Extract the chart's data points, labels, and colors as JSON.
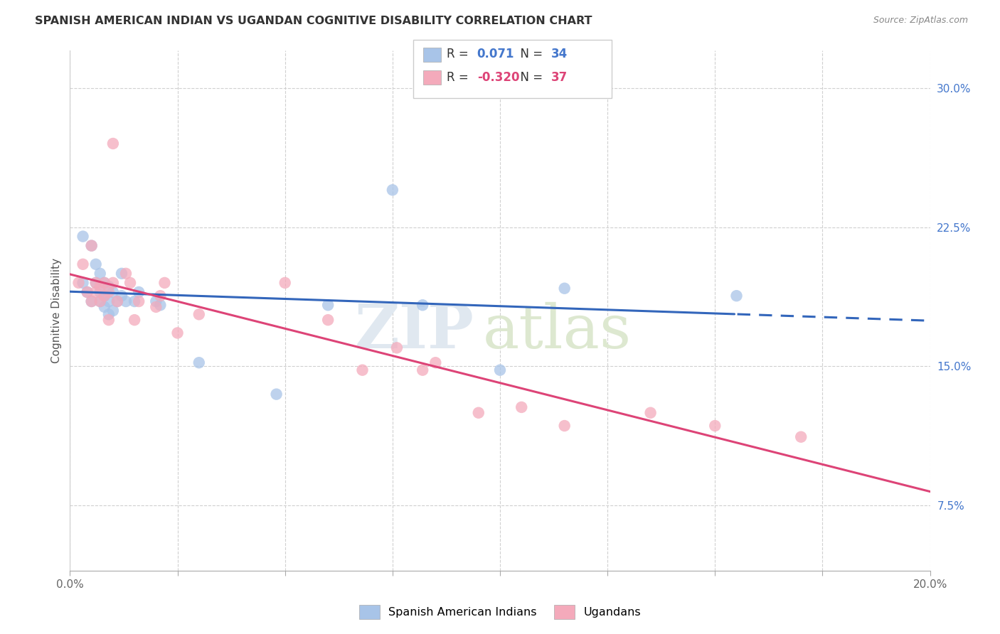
{
  "title": "SPANISH AMERICAN INDIAN VS UGANDAN COGNITIVE DISABILITY CORRELATION CHART",
  "source": "Source: ZipAtlas.com",
  "ylabel": "Cognitive Disability",
  "right_yticks": [
    "30.0%",
    "22.5%",
    "15.0%",
    "7.5%"
  ],
  "right_ytick_vals": [
    0.3,
    0.225,
    0.15,
    0.075
  ],
  "xlim": [
    0.0,
    0.2
  ],
  "ylim": [
    0.04,
    0.32
  ],
  "blue_R": "0.071",
  "blue_N": "34",
  "pink_R": "-0.320",
  "pink_N": "37",
  "blue_color": "#A8C4E8",
  "pink_color": "#F4AABB",
  "blue_line_color": "#3366BB",
  "pink_line_color": "#DD4477",
  "legend_label_blue": "Spanish American Indians",
  "legend_label_pink": "Ugandans",
  "watermark_zip": "ZIP",
  "watermark_atlas": "atlas",
  "blue_x": [
    0.003,
    0.003,
    0.004,
    0.005,
    0.005,
    0.006,
    0.006,
    0.007,
    0.007,
    0.007,
    0.008,
    0.008,
    0.008,
    0.009,
    0.009,
    0.009,
    0.01,
    0.01,
    0.011,
    0.012,
    0.012,
    0.013,
    0.015,
    0.016,
    0.02,
    0.021,
    0.03,
    0.048,
    0.06,
    0.075,
    0.082,
    0.1,
    0.115,
    0.155
  ],
  "blue_y": [
    0.195,
    0.22,
    0.19,
    0.185,
    0.215,
    0.195,
    0.205,
    0.185,
    0.19,
    0.2,
    0.182,
    0.188,
    0.195,
    0.178,
    0.185,
    0.193,
    0.18,
    0.19,
    0.185,
    0.188,
    0.2,
    0.185,
    0.185,
    0.19,
    0.185,
    0.183,
    0.152,
    0.135,
    0.183,
    0.245,
    0.183,
    0.148,
    0.192,
    0.188
  ],
  "pink_x": [
    0.002,
    0.003,
    0.004,
    0.005,
    0.005,
    0.006,
    0.006,
    0.007,
    0.007,
    0.008,
    0.008,
    0.009,
    0.009,
    0.01,
    0.01,
    0.011,
    0.013,
    0.014,
    0.015,
    0.016,
    0.02,
    0.021,
    0.022,
    0.025,
    0.03,
    0.05,
    0.06,
    0.068,
    0.076,
    0.082,
    0.085,
    0.095,
    0.105,
    0.115,
    0.135,
    0.15,
    0.17
  ],
  "pink_y": [
    0.195,
    0.205,
    0.19,
    0.185,
    0.215,
    0.195,
    0.19,
    0.185,
    0.193,
    0.188,
    0.195,
    0.175,
    0.19,
    0.27,
    0.195,
    0.185,
    0.2,
    0.195,
    0.175,
    0.185,
    0.182,
    0.188,
    0.195,
    0.168,
    0.178,
    0.195,
    0.175,
    0.148,
    0.16,
    0.148,
    0.152,
    0.125,
    0.128,
    0.118,
    0.125,
    0.118,
    0.112
  ]
}
